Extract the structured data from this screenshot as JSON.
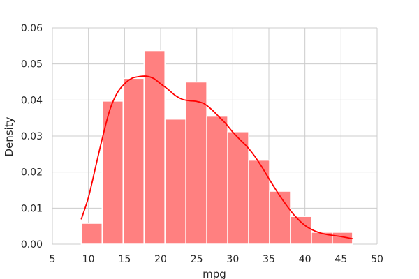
{
  "chart_data": {
    "type": "bar",
    "subtype": "histogram-with-kde",
    "title": "",
    "xlabel": "mpg",
    "ylabel": "Density",
    "xlim": [
      5,
      50
    ],
    "ylim": [
      0,
      0.06
    ],
    "grid": true,
    "xticks": [
      "5",
      "10",
      "15",
      "20",
      "25",
      "30",
      "35",
      "40",
      "45",
      "50"
    ],
    "yticks": [
      "0.00",
      "0.01",
      "0.02",
      "0.03",
      "0.04",
      "0.05",
      "0.06"
    ],
    "colors": {
      "bars": "#ff8080",
      "kde": "#ff0000",
      "grid": "#cccccc"
    },
    "bins": [
      {
        "x0": 9.0,
        "x1": 11.9,
        "density": 0.0058
      },
      {
        "x0": 11.9,
        "x1": 14.8,
        "density": 0.0397
      },
      {
        "x0": 14.8,
        "x1": 17.7,
        "density": 0.046
      },
      {
        "x0": 17.7,
        "x1": 20.6,
        "density": 0.0537
      },
      {
        "x0": 20.6,
        "x1": 23.5,
        "density": 0.0347
      },
      {
        "x0": 23.5,
        "x1": 26.4,
        "density": 0.045
      },
      {
        "x0": 26.4,
        "x1": 29.3,
        "density": 0.0355
      },
      {
        "x0": 29.3,
        "x1": 32.2,
        "density": 0.0312
      },
      {
        "x0": 32.2,
        "x1": 35.1,
        "density": 0.0233
      },
      {
        "x0": 35.1,
        "x1": 38.0,
        "density": 0.0147
      },
      {
        "x0": 38.0,
        "x1": 40.9,
        "density": 0.0077
      },
      {
        "x0": 40.9,
        "x1": 43.8,
        "density": 0.0033
      },
      {
        "x0": 43.8,
        "x1": 46.6,
        "density": 0.0033
      }
    ],
    "kde": {
      "x": [
        9.0,
        10.0,
        11.0,
        12.0,
        13.0,
        14.0,
        15.0,
        16.0,
        17.0,
        18.0,
        19.0,
        20.0,
        21.0,
        22.0,
        23.0,
        24.0,
        25.0,
        26.0,
        27.0,
        28.0,
        29.0,
        30.0,
        31.0,
        32.0,
        33.0,
        34.0,
        35.0,
        36.0,
        37.0,
        38.0,
        39.0,
        40.0,
        41.0,
        42.0,
        43.0,
        44.0,
        45.0,
        46.6
      ],
      "y": [
        0.0069,
        0.013,
        0.0215,
        0.03,
        0.0375,
        0.042,
        0.0445,
        0.046,
        0.0465,
        0.0466,
        0.046,
        0.0445,
        0.043,
        0.0413,
        0.0402,
        0.0398,
        0.0396,
        0.039,
        0.0375,
        0.0355,
        0.0335,
        0.0311,
        0.029,
        0.027,
        0.0245,
        0.0215,
        0.0182,
        0.015,
        0.012,
        0.0093,
        0.007,
        0.0052,
        0.004,
        0.0032,
        0.0027,
        0.0024,
        0.0021,
        0.0015
      ]
    }
  }
}
